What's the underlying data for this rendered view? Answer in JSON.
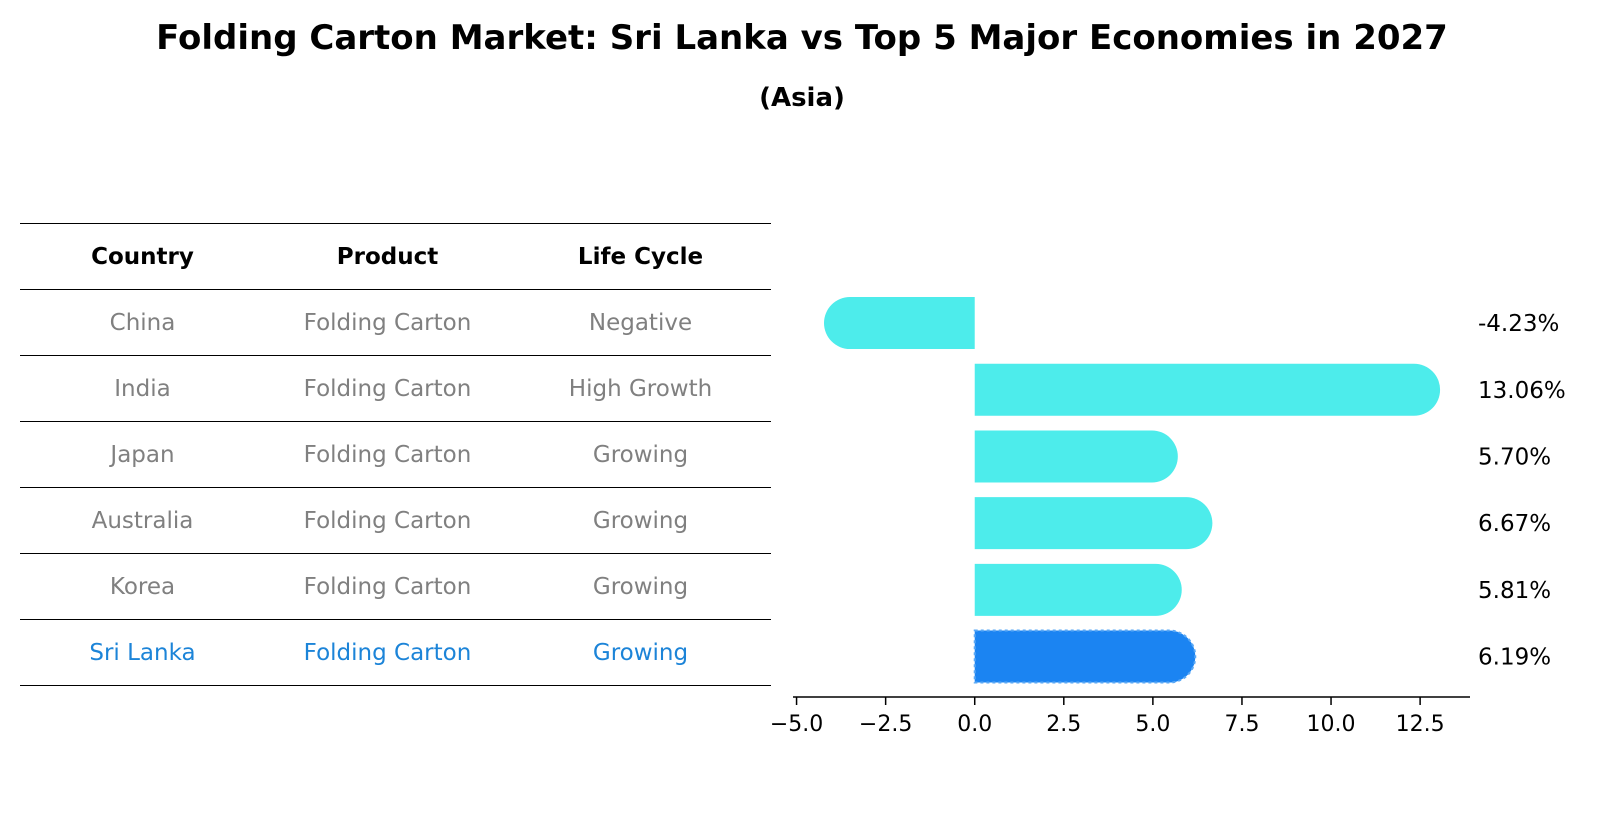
{
  "title": "Folding Carton Market: Sri Lanka vs Top 5 Major Economies in 2027",
  "subtitle": "(Asia)",
  "table": {
    "headers": [
      "Country",
      "Product",
      "Life Cycle"
    ],
    "rows": [
      [
        "China",
        "Folding Carton",
        "Negative"
      ],
      [
        "India",
        "Folding Carton",
        "High Growth"
      ],
      [
        "Japan",
        "Folding Carton",
        "Growing"
      ],
      [
        "Australia",
        "Folding Carton",
        "Growing"
      ],
      [
        "Korea",
        "Folding Carton",
        "Growing"
      ],
      [
        "Sri Lanka",
        "Folding Carton",
        "Growing"
      ]
    ],
    "highlight_row": 5
  },
  "colors": {
    "bar": "#4deceb",
    "highlight_bar": "#1b84f2",
    "highlight_text": "#1c84d8",
    "muted_text": "#808080"
  },
  "chart_data": {
    "type": "bar",
    "orientation": "horizontal",
    "categories": [
      "China",
      "India",
      "Japan",
      "Australia",
      "Korea",
      "Sri Lanka"
    ],
    "values": [
      -4.23,
      13.06,
      5.7,
      6.67,
      5.81,
      6.19
    ],
    "value_labels": [
      "-4.23%",
      "13.06%",
      "5.70%",
      "6.67%",
      "5.81%",
      "6.19%"
    ],
    "highlight": "Sri Lanka",
    "xlim": [
      -5.1,
      13.9
    ],
    "xticks": [
      -5.0,
      -2.5,
      0.0,
      2.5,
      5.0,
      7.5,
      10.0,
      12.5
    ],
    "xtick_labels": [
      "−5.0",
      "−2.5",
      "0.0",
      "2.5",
      "5.0",
      "7.5",
      "10.0",
      "12.5"
    ],
    "xlabel": "",
    "ylabel": "",
    "grid": false
  }
}
